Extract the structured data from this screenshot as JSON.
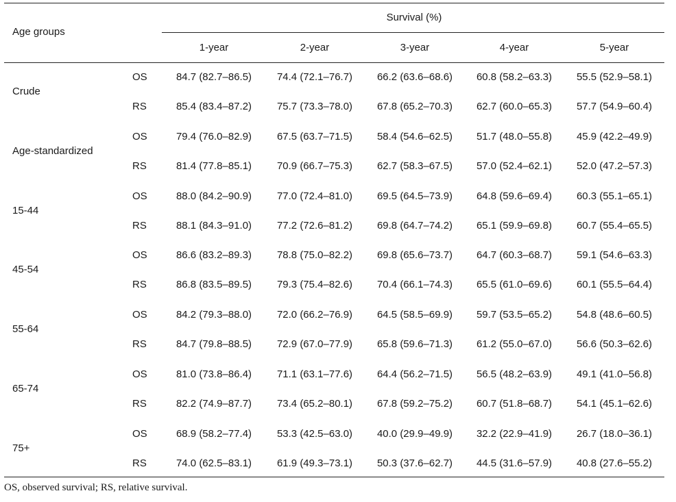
{
  "table": {
    "header": {
      "row_header": "Age groups",
      "group_header": "Survival (%)",
      "columns": [
        "1-year",
        "2-year",
        "3-year",
        "4-year",
        "5-year"
      ]
    },
    "groups": [
      {
        "label": "Crude",
        "rows": [
          {
            "type": "OS",
            "values": [
              "84.7 (82.7–86.5)",
              "74.4 (72.1–76.7)",
              "66.2 (63.6–68.6)",
              "60.8 (58.2–63.3)",
              "55.5 (52.9–58.1)"
            ]
          },
          {
            "type": "RS",
            "values": [
              "85.4 (83.4–87.2)",
              "75.7 (73.3–78.0)",
              "67.8 (65.2–70.3)",
              "62.7 (60.0–65.3)",
              "57.7 (54.9–60.4)"
            ]
          }
        ]
      },
      {
        "label": "Age-standardized",
        "rows": [
          {
            "type": "OS",
            "values": [
              "79.4 (76.0–82.9)",
              "67.5 (63.7–71.5)",
              "58.4 (54.6–62.5)",
              "51.7 (48.0–55.8)",
              "45.9 (42.2–49.9)"
            ]
          },
          {
            "type": "RS",
            "values": [
              "81.4 (77.8–85.1)",
              "70.9 (66.7–75.3)",
              "62.7 (58.3–67.5)",
              "57.0 (52.4–62.1)",
              "52.0 (47.2–57.3)"
            ]
          }
        ]
      },
      {
        "label": "15-44",
        "rows": [
          {
            "type": "OS",
            "values": [
              "88.0 (84.2–90.9)",
              "77.0 (72.4–81.0)",
              "69.5 (64.5–73.9)",
              "64.8 (59.6–69.4)",
              "60.3 (55.1–65.1)"
            ]
          },
          {
            "type": "RS",
            "values": [
              "88.1 (84.3–91.0)",
              "77.2 (72.6–81.2)",
              "69.8 (64.7–74.2)",
              "65.1 (59.9–69.8)",
              "60.7 (55.4–65.5)"
            ]
          }
        ]
      },
      {
        "label": "45-54",
        "rows": [
          {
            "type": "OS",
            "values": [
              "86.6 (83.2–89.3)",
              "78.8 (75.0–82.2)",
              "69.8 (65.6–73.7)",
              "64.7 (60.3–68.7)",
              "59.1 (54.6–63.3)"
            ]
          },
          {
            "type": "RS",
            "values": [
              "86.8 (83.5–89.5)",
              "79.3 (75.4–82.6)",
              "70.4 (66.1–74.3)",
              "65.5 (61.0–69.6)",
              "60.1 (55.5–64.4)"
            ]
          }
        ]
      },
      {
        "label": "55-64",
        "rows": [
          {
            "type": "OS",
            "values": [
              "84.2 (79.3–88.0)",
              "72.0 (66.2–76.9)",
              "64.5 (58.5–69.9)",
              "59.7 (53.5–65.2)",
              "54.8 (48.6–60.5)"
            ]
          },
          {
            "type": "RS",
            "values": [
              "84.7 (79.8–88.5)",
              "72.9 (67.0–77.9)",
              "65.8 (59.6–71.3)",
              "61.2 (55.0–67.0)",
              "56.6 (50.3–62.6)"
            ]
          }
        ]
      },
      {
        "label": "65-74",
        "rows": [
          {
            "type": "OS",
            "values": [
              "81.0 (73.8–86.4)",
              "71.1 (63.1–77.6)",
              "64.4 (56.2–71.5)",
              "56.5 (48.2–63.9)",
              "49.1 (41.0–56.8)"
            ]
          },
          {
            "type": "RS",
            "values": [
              "82.2 (74.9–87.7)",
              "73.4 (65.2–80.1)",
              "67.8 (59.2–75.2)",
              "60.7 (51.8–68.7)",
              "54.1 (45.1–62.6)"
            ]
          }
        ]
      },
      {
        "label": "75+",
        "rows": [
          {
            "type": "OS",
            "values": [
              "68.9 (58.2–77.4)",
              "53.3 (42.5–63.0)",
              "40.0 (29.9–49.9)",
              "32.2 (22.9–41.9)",
              "26.7 (18.0–36.1)"
            ]
          },
          {
            "type": "RS",
            "values": [
              "74.0 (62.5–83.1)",
              "61.9 (49.3–73.1)",
              "50.3 (37.6–62.7)",
              "44.5 (31.6–57.9)",
              "40.8 (27.6–55.2)"
            ]
          }
        ]
      }
    ]
  },
  "footnote": "OS, observed survival; RS, relative survival."
}
